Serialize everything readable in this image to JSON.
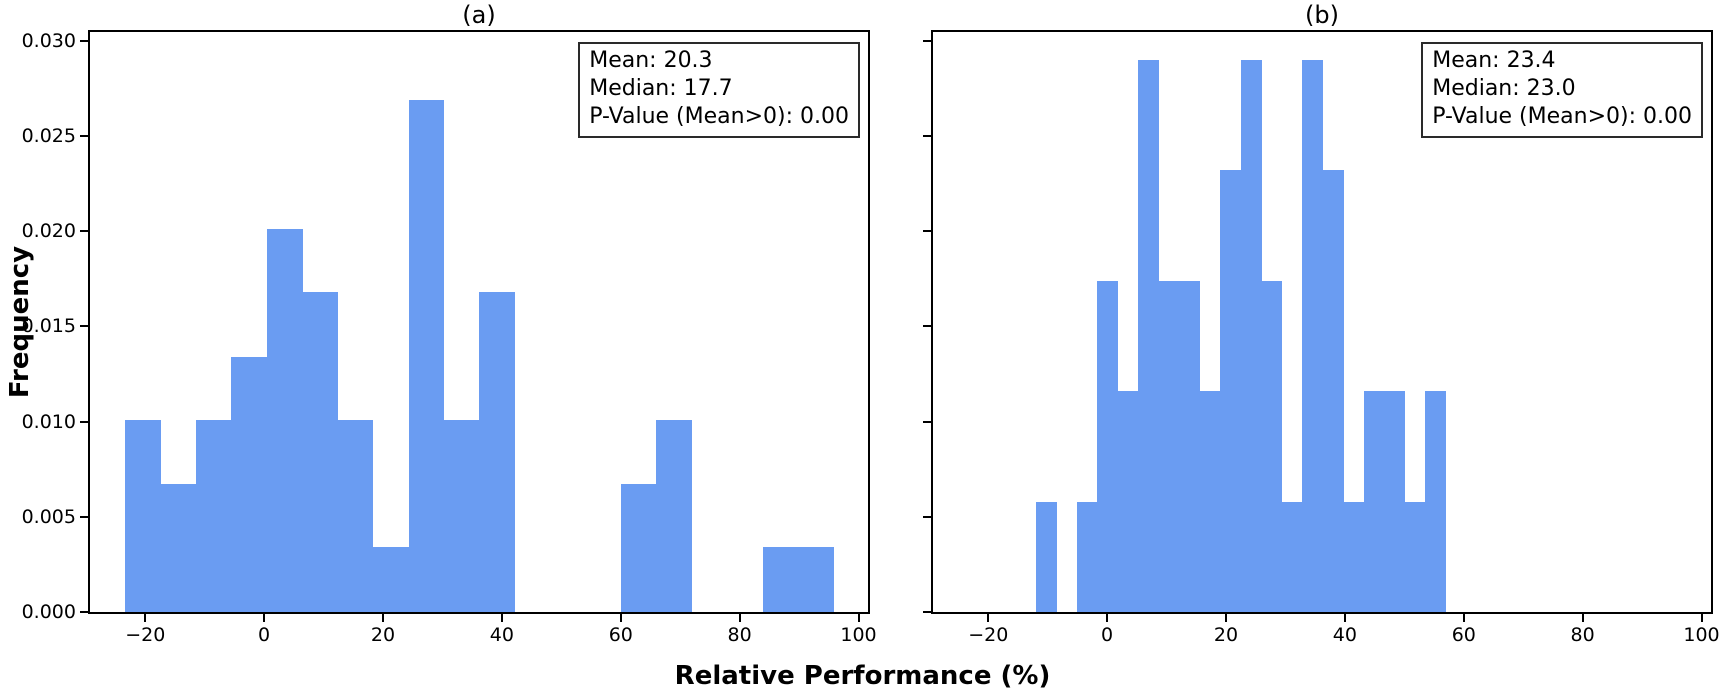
{
  "figure": {
    "xlabel": "Relative Performance (%)",
    "ylabel": "Frequency",
    "bar_color": "#6a9cf2",
    "spine_color": "#000000",
    "background_color": "#ffffff"
  },
  "chart_data": [
    {
      "type": "bar",
      "subtype": "histogram",
      "title": "(a)",
      "xlabel": "Relative Performance (%)",
      "ylabel": "Frequency",
      "xlim": [
        -29.3,
        101.6
      ],
      "ylim": [
        0,
        0.03045
      ],
      "grid": false,
      "legend_position": "none",
      "x_tick_values": [
        -20,
        0,
        20,
        40,
        60,
        80,
        100
      ],
      "x_tick_labels": [
        "−20",
        "0",
        "20",
        "40",
        "60",
        "80",
        "100"
      ],
      "y_tick_values": [
        0,
        0.005,
        0.01,
        0.015,
        0.02,
        0.025,
        0.03
      ],
      "y_tick_labels": [
        "0.000",
        "0.005",
        "0.010",
        "0.015",
        "0.020",
        "0.025",
        "0.030"
      ],
      "show_y_tick_labels": true,
      "bin_start": -23.4,
      "bin_width": 5.96,
      "counts": [
        3,
        2,
        3,
        4,
        6,
        5,
        3,
        1,
        8,
        3,
        5,
        0,
        0,
        0,
        2,
        3,
        0,
        0,
        1,
        1
      ],
      "densities": [
        0.0101,
        0.0067,
        0.0101,
        0.0134,
        0.0201,
        0.0168,
        0.0101,
        0.0034,
        0.0269,
        0.0101,
        0.0168,
        0,
        0,
        0,
        0.0067,
        0.0101,
        0,
        0,
        0.0034,
        0.0034
      ],
      "stats_lines": [
        "Mean: 20.3",
        "Median: 17.7",
        "P-Value (Mean>0): 0.00"
      ]
    },
    {
      "type": "bar",
      "subtype": "histogram",
      "title": "(b)",
      "xlabel": "Relative Performance (%)",
      "ylabel": "Frequency",
      "xlim": [
        -29.3,
        101.6
      ],
      "ylim": [
        0,
        0.03045
      ],
      "grid": false,
      "legend_position": "none",
      "x_tick_values": [
        -20,
        0,
        20,
        40,
        60,
        80,
        100
      ],
      "x_tick_labels": [
        "−20",
        "0",
        "20",
        "40",
        "60",
        "80",
        "100"
      ],
      "y_tick_values": [
        0,
        0.005,
        0.01,
        0.015,
        0.02,
        0.025,
        0.03
      ],
      "y_tick_labels": [
        "0.000",
        "0.005",
        "0.010",
        "0.015",
        "0.020",
        "0.025",
        "0.030"
      ],
      "show_y_tick_labels": false,
      "bin_start": -12.0,
      "bin_width": 3.45,
      "counts": [
        1,
        0,
        1,
        3,
        2,
        5,
        3,
        3,
        2,
        4,
        5,
        3,
        1,
        5,
        4,
        1,
        2,
        2,
        1,
        2
      ],
      "densities": [
        0.0058,
        0,
        0.0058,
        0.0174,
        0.0116,
        0.029,
        0.0174,
        0.0174,
        0.0116,
        0.0232,
        0.029,
        0.0174,
        0.0058,
        0.029,
        0.0232,
        0.0058,
        0.0116,
        0.0116,
        0.0058,
        0.0116
      ],
      "stats_lines": [
        "Mean: 23.4",
        "Median: 23.0",
        "P-Value (Mean>0): 0.00"
      ]
    }
  ]
}
